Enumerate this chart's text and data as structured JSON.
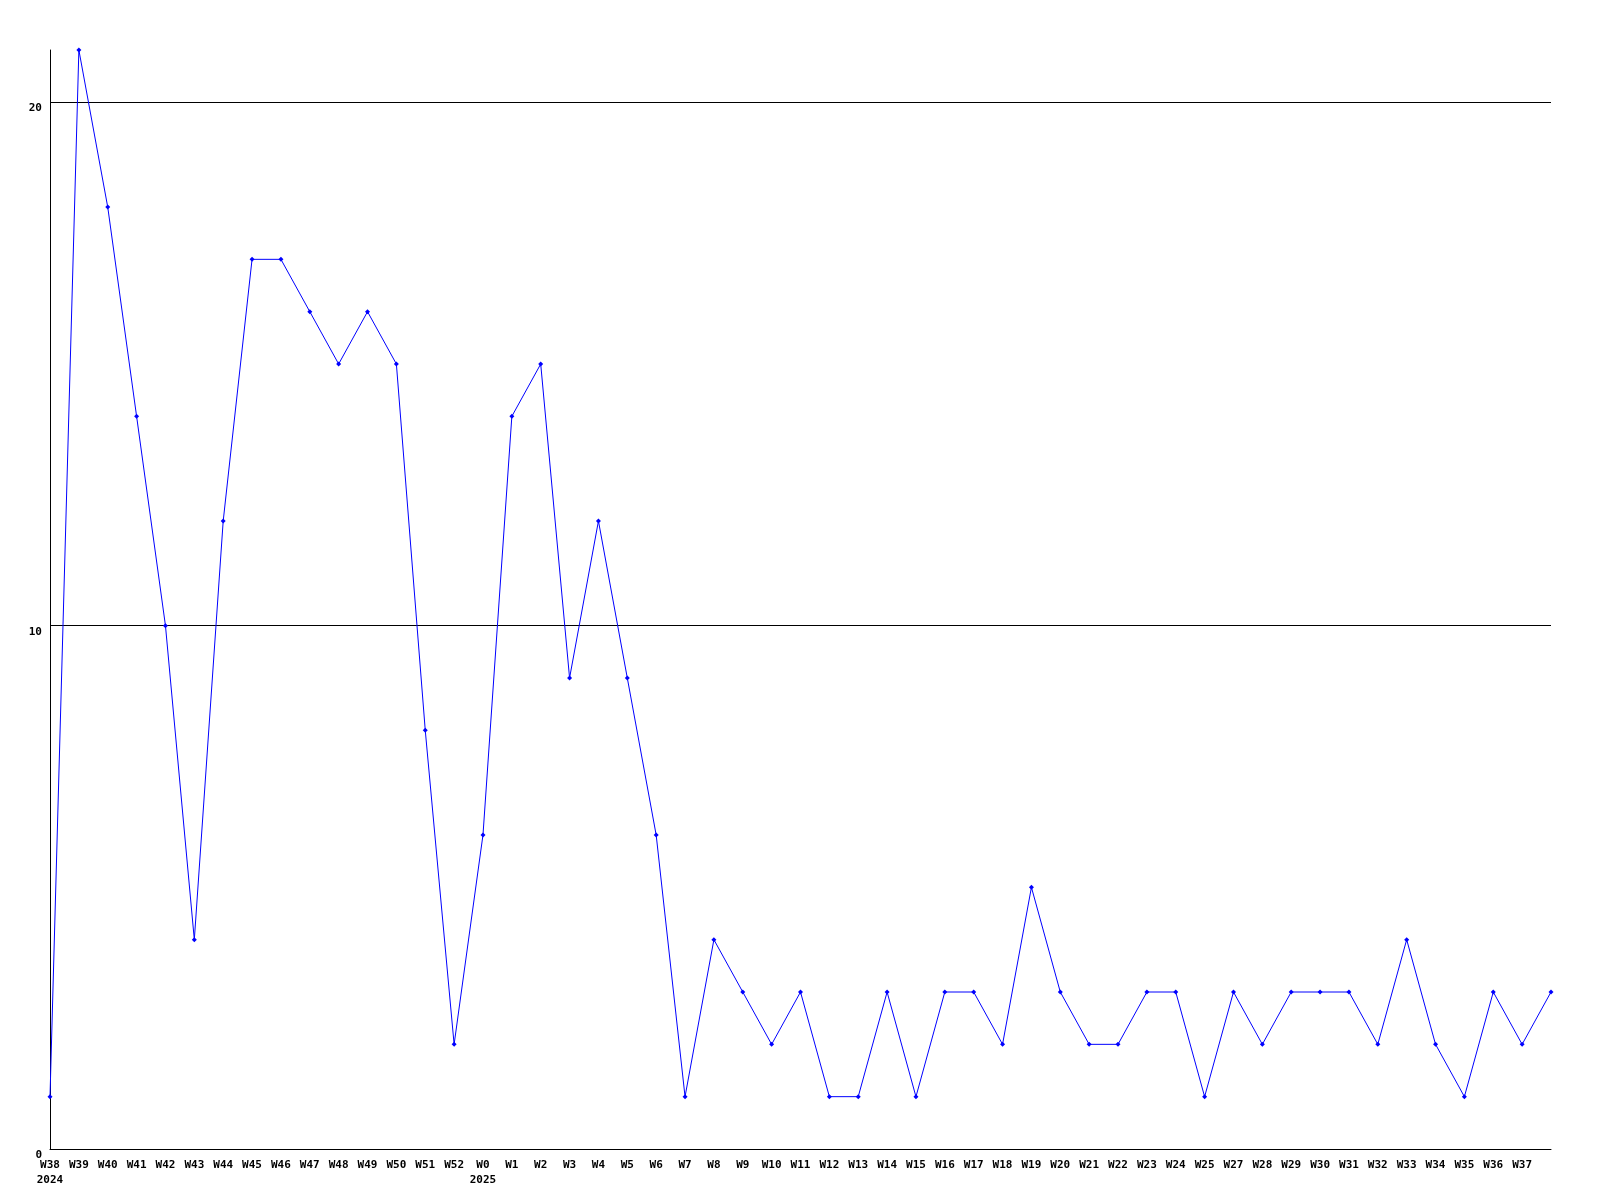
{
  "chart_data": {
    "type": "line",
    "categories": [
      "W38\n2024",
      "W39",
      "W40",
      "W41",
      "W42",
      "W43",
      "W44",
      "W45",
      "W46",
      "W47",
      "W48",
      "W49",
      "W50",
      "W51",
      "W52",
      "W0\n2025",
      "W1",
      "W2",
      "W3",
      "W4",
      "W5",
      "W6",
      "W7",
      "W8",
      "W9",
      "W10",
      "W11",
      "W12",
      "W13",
      "W14",
      "W15",
      "W16",
      "W17",
      "W18",
      "W19",
      "W20",
      "W21",
      "W22",
      "W23",
      "W24",
      "W25",
      "W27",
      "W28",
      "W29",
      "W30",
      "W31",
      "W32",
      "W33",
      "W34",
      "W35",
      "W36",
      "W37",
      null
    ],
    "series": [
      {
        "color": "#0000ff",
        "values": [
          1,
          21,
          18,
          14,
          10,
          4,
          12,
          17,
          17,
          16,
          15,
          16,
          15,
          8,
          2,
          6,
          14,
          15,
          9,
          12,
          9,
          6,
          1,
          4,
          3,
          2,
          3,
          1,
          1,
          3,
          1,
          3,
          3,
          2,
          5,
          3,
          2,
          2,
          3,
          3,
          1,
          3,
          2,
          3,
          3,
          3,
          2,
          4,
          2,
          1,
          3,
          2,
          3
        ]
      }
    ],
    "ylim": [
      0,
      21
    ],
    "yticks": [
      0,
      10,
      20
    ],
    "grid": "y",
    "marker": "diamond",
    "line_style": "solid"
  }
}
